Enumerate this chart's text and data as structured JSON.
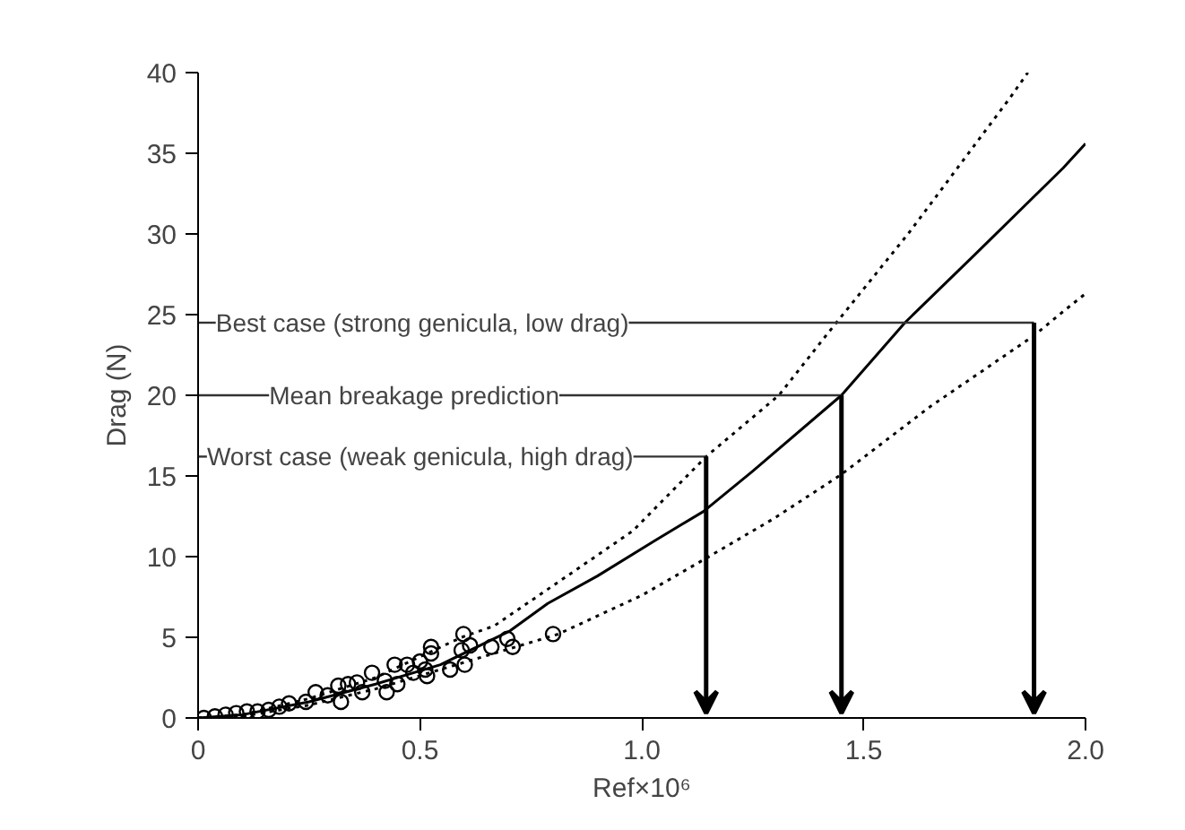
{
  "chart_data": {
    "type": "line",
    "xlabel": "Ref×10⁶",
    "ylabel": "Drag (N)",
    "xlim": [
      0,
      2.0
    ],
    "ylim": [
      0,
      40
    ],
    "xticks": [
      0,
      {
        "value": 0.5,
        "label": "0.5"
      },
      {
        "value": 1.0,
        "label": "1.0"
      },
      {
        "value": 1.5,
        "label": "1.5"
      },
      {
        "value": 2.0,
        "label": "2.0"
      }
    ],
    "yticks": [
      0,
      5,
      10,
      15,
      20,
      25,
      30,
      35,
      40
    ],
    "grid": false,
    "series": [
      {
        "type": "scatter",
        "marker": "circle",
        "color": "#000000",
        "x": [
          0.013,
          0.038,
          0.062,
          0.086,
          0.11,
          0.134,
          0.159,
          0.183,
          0.205,
          0.243,
          0.265,
          0.292,
          0.316,
          0.322,
          0.338,
          0.358,
          0.37,
          0.392,
          0.421,
          0.425,
          0.443,
          0.449,
          0.471,
          0.485,
          0.5,
          0.512,
          0.516,
          0.525,
          0.525,
          0.568,
          0.594,
          0.598,
          0.601,
          0.613,
          0.661,
          0.697,
          0.709,
          0.8
        ],
        "values": [
          0.0,
          0.1,
          0.2,
          0.3,
          0.4,
          0.4,
          0.5,
          0.7,
          0.9,
          1.0,
          1.6,
          1.4,
          2.0,
          1.0,
          2.1,
          2.2,
          1.6,
          2.8,
          2.3,
          1.6,
          3.3,
          2.1,
          3.3,
          2.8,
          3.5,
          3.0,
          2.6,
          4.4,
          4.0,
          3.0,
          4.2,
          5.2,
          3.3,
          4.5,
          4.4,
          4.9,
          4.4,
          5.2
        ]
      },
      {
        "line_style": "dotted",
        "color": "#000000",
        "x": [
          0,
          0.1,
          0.25,
          0.4,
          0.594,
          0.667,
          0.8,
          0.98,
          1.145,
          1.309,
          1.418,
          1.6,
          1.829,
          1.87
        ],
        "values": [
          0,
          0.2,
          1.2,
          2.5,
          5.0,
          5.7,
          8.2,
          11.6,
          16.2,
          20.0,
          23.8,
          30.0,
          38.4,
          40
        ]
      },
      {
        "line_style": "solid",
        "color": "#000000",
        "x": [
          0,
          0.1,
          0.25,
          0.4,
          0.546,
          0.703,
          0.788,
          0.9,
          1.03,
          1.139,
          1.25,
          1.45,
          1.593,
          1.75,
          1.95,
          2.0
        ],
        "values": [
          0,
          0.2,
          1.0,
          2.1,
          3.3,
          5.4,
          7.1,
          8.8,
          11.0,
          12.8,
          15.3,
          20.0,
          24.5,
          28.7,
          34.1,
          35.6
        ]
      },
      {
        "line_style": "dotted",
        "color": "#000000",
        "x": [
          0,
          0.1,
          0.25,
          0.4,
          0.546,
          0.812,
          1.0,
          1.145,
          1.3,
          1.45,
          1.65,
          1.884,
          1.95,
          2.0
        ],
        "values": [
          0,
          0.1,
          0.8,
          1.8,
          3.0,
          5.2,
          7.6,
          9.9,
          12.4,
          15.1,
          19.3,
          23.7,
          25.2,
          26.3
        ]
      }
    ],
    "annotations": [
      {
        "text": "Best case (strong genicula, low drag)",
        "x": 1.884,
        "y": 24.5
      },
      {
        "text": "Mean breakage prediction",
        "x": 1.45,
        "y": 20.0
      },
      {
        "text": "Worst case (weak genicula, high drag)",
        "x": 1.145,
        "y": 16.2
      }
    ]
  }
}
